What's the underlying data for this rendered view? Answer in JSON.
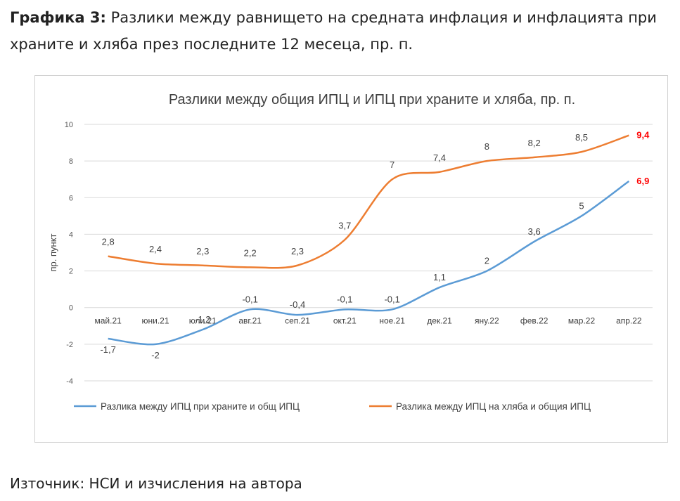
{
  "caption": {
    "label": "Графика 3:",
    "text": " Разлики между равнището на средната инфлация и инфлацията при храните и хляба през последните 12 месеца, пр. п."
  },
  "source": "Източник: НСИ и изчисления на автора",
  "colors": {
    "food": "#5b9bd5",
    "bread": "#ed7d31",
    "last_label": "#ff0000"
  },
  "chart_data": {
    "type": "line",
    "title": "Разлики между общия ИПЦ и ИПЦ при храните и хляба, пр. п.",
    "ylabel": "пр. пункт",
    "xlabel": "",
    "categories": [
      "май.21",
      "юни.21",
      "юли.21",
      "авг.21",
      "сеп.21",
      "окт.21",
      "ное.21",
      "дек.21",
      "яну.22",
      "фев.22",
      "мар.22",
      "апр.22"
    ],
    "ylim": [
      -4,
      10
    ],
    "yticks": [
      -4,
      -2,
      0,
      2,
      4,
      6,
      8,
      10
    ],
    "grid": true,
    "legend_position": "bottom",
    "series": [
      {
        "name": "Разлика между ИПЦ при храните и общ ИПЦ",
        "color": "#5b9bd5",
        "values": [
          -1.7,
          -2,
          -1.2,
          -0.1,
          -0.4,
          -0.1,
          -0.1,
          1.1,
          2,
          3.6,
          5,
          6.9
        ],
        "labels": [
          "-1,7",
          "-2",
          "-1,2",
          "-0,1",
          "-0,4",
          "-0,1",
          "-0,1",
          "1,1",
          "2",
          "3,6",
          "5",
          "6,9"
        ]
      },
      {
        "name": "Разлика между ИПЦ на хляба и общия ИПЦ",
        "color": "#ed7d31",
        "values": [
          2.8,
          2.4,
          2.3,
          2.2,
          2.3,
          3.7,
          7,
          7.4,
          8,
          8.2,
          8.5,
          9.4
        ],
        "labels": [
          "2,8",
          "2,4",
          "2,3",
          "2,2",
          "2,3",
          "3,7",
          "7",
          "7,4",
          "8",
          "8,2",
          "8,5",
          "9,4"
        ]
      }
    ]
  }
}
